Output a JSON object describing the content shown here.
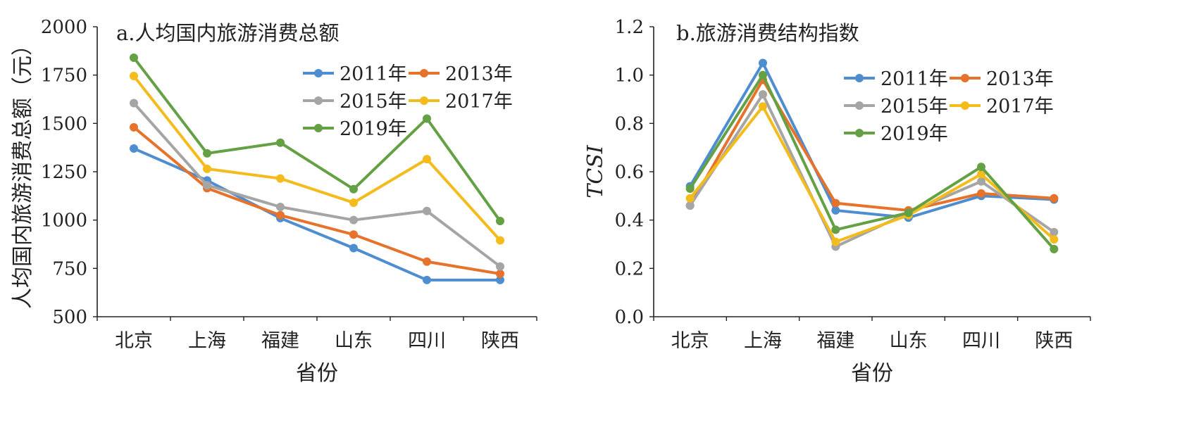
{
  "chart_data": [
    {
      "type": "line",
      "title": "a.人均国内旅游消费总额",
      "xlabel": "省份",
      "ylabel": "人均国内旅游消费总额（元）",
      "ylim": [
        500,
        2000
      ],
      "yticks": [
        "2000",
        "1750",
        "1500",
        "1250",
        "1000",
        "750",
        "500"
      ],
      "categories": [
        "北京",
        "上海",
        "福建",
        "山东",
        "四川",
        "陕西"
      ],
      "legend_position": "top-right",
      "series": [
        {
          "name": "2011年",
          "color": "#4e8ed0",
          "values": [
            1370,
            1205,
            1010,
            855,
            690,
            690
          ]
        },
        {
          "name": "2013年",
          "color": "#e6722c",
          "values": [
            1480,
            1165,
            1025,
            925,
            785,
            722
          ]
        },
        {
          "name": "2015年",
          "color": "#a5a5a5",
          "values": [
            1605,
            1180,
            1068,
            1000,
            1047,
            760
          ]
        },
        {
          "name": "2017年",
          "color": "#f4bb1c",
          "values": [
            1745,
            1265,
            1215,
            1090,
            1315,
            895
          ]
        },
        {
          "name": "2019年",
          "color": "#64a044",
          "values": [
            1840,
            1345,
            1400,
            1160,
            1525,
            995
          ]
        }
      ]
    },
    {
      "type": "line",
      "title": "b.旅游消费结构指数",
      "xlabel": "省份",
      "ylabel": "TCSI",
      "ylim": [
        0,
        1.2
      ],
      "yticks": [
        "1.2",
        "1.0",
        "0.8",
        "0.6",
        "0.4",
        "0.2",
        "0.0"
      ],
      "categories": [
        "北京",
        "上海",
        "福建",
        "山东",
        "四川",
        "陕西"
      ],
      "legend_position": "top-right",
      "series": [
        {
          "name": "2011年",
          "color": "#4e8ed0",
          "values": [
            0.54,
            1.05,
            0.44,
            0.41,
            0.5,
            0.485
          ]
        },
        {
          "name": "2013年",
          "color": "#e6722c",
          "values": [
            0.46,
            0.98,
            0.47,
            0.44,
            0.51,
            0.49
          ]
        },
        {
          "name": "2015年",
          "color": "#a5a5a5",
          "values": [
            0.46,
            0.92,
            0.29,
            0.43,
            0.56,
            0.35
          ]
        },
        {
          "name": "2017年",
          "color": "#f4bb1c",
          "values": [
            0.49,
            0.87,
            0.31,
            0.42,
            0.59,
            0.32
          ]
        },
        {
          "name": "2019年",
          "color": "#64a044",
          "values": [
            0.53,
            1.0,
            0.36,
            0.43,
            0.62,
            0.28
          ]
        }
      ]
    }
  ]
}
